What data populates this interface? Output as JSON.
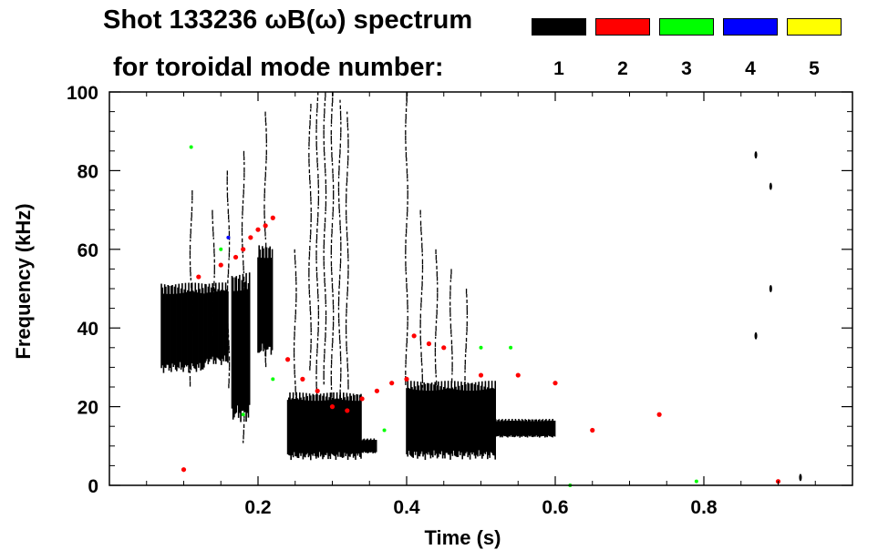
{
  "chart_data": {
    "type": "heatmap",
    "title": "Shot 133236 ωB(ω) spectrum",
    "subtitle": "for toroidal mode number:",
    "xlabel": "Time (s)",
    "ylabel": "Frequency (kHz)",
    "xlim": [
      0.0,
      1.0
    ],
    "ylim": [
      0,
      100
    ],
    "x_ticks": [
      0.2,
      0.4,
      0.6,
      0.8
    ],
    "x_tick_labels": [
      "0.2",
      "0.4",
      "0.6",
      "0.8"
    ],
    "y_ticks": [
      0,
      20,
      40,
      60,
      80,
      100
    ],
    "y_tick_labels": [
      "0",
      "20",
      "40",
      "60",
      "80",
      "100"
    ],
    "legend": [
      {
        "label": "1",
        "color": "#000000"
      },
      {
        "label": "2",
        "color": "#ff0000"
      },
      {
        "label": "3",
        "color": "#00ff00"
      },
      {
        "label": "4",
        "color": "#0000ff"
      },
      {
        "label": "5",
        "color": "#ffff00"
      }
    ],
    "mode1_regions": [
      {
        "t0": 0.07,
        "t1": 0.13,
        "f0": 28,
        "f1": 52
      },
      {
        "t0": 0.13,
        "t1": 0.16,
        "f0": 30,
        "f1": 52
      },
      {
        "t0": 0.165,
        "t1": 0.19,
        "f0": 15,
        "f1": 55
      },
      {
        "t0": 0.2,
        "t1": 0.22,
        "f0": 32,
        "f1": 62
      },
      {
        "t0": 0.24,
        "t1": 0.34,
        "f0": 6,
        "f1": 24
      },
      {
        "t0": 0.34,
        "t1": 0.36,
        "f0": 8,
        "f1": 12
      },
      {
        "t0": 0.4,
        "t1": 0.52,
        "f0": 6,
        "f1": 27
      },
      {
        "t0": 0.52,
        "t1": 0.6,
        "f0": 12,
        "f1": 17
      }
    ],
    "mode1_vertical_streaks": [
      {
        "t": 0.11,
        "f0": 25,
        "f1": 75
      },
      {
        "t": 0.14,
        "f0": 35,
        "f1": 70
      },
      {
        "t": 0.16,
        "f0": 25,
        "f1": 80
      },
      {
        "t": 0.18,
        "f0": 10,
        "f1": 85
      },
      {
        "t": 0.21,
        "f0": 30,
        "f1": 95
      },
      {
        "t": 0.25,
        "f0": 20,
        "f1": 60
      },
      {
        "t": 0.27,
        "f0": 30,
        "f1": 97
      },
      {
        "t": 0.28,
        "f0": 20,
        "f1": 100
      },
      {
        "t": 0.29,
        "f0": 25,
        "f1": 100
      },
      {
        "t": 0.3,
        "f0": 20,
        "f1": 100
      },
      {
        "t": 0.31,
        "f0": 20,
        "f1": 98
      },
      {
        "t": 0.32,
        "f0": 25,
        "f1": 95
      },
      {
        "t": 0.4,
        "f0": 25,
        "f1": 100
      },
      {
        "t": 0.42,
        "f0": 20,
        "f1": 70
      },
      {
        "t": 0.44,
        "f0": 20,
        "f1": 60
      },
      {
        "t": 0.46,
        "f0": 20,
        "f1": 55
      },
      {
        "t": 0.48,
        "f0": 20,
        "f1": 50
      }
    ],
    "mode1_points": [
      {
        "t": 0.87,
        "f": 84
      },
      {
        "t": 0.89,
        "f": 76
      },
      {
        "t": 0.89,
        "f": 50
      },
      {
        "t": 0.87,
        "f": 38
      },
      {
        "t": 0.93,
        "f": 2
      }
    ],
    "mode2_points": [
      {
        "t": 0.12,
        "f": 53
      },
      {
        "t": 0.15,
        "f": 56
      },
      {
        "t": 0.17,
        "f": 58
      },
      {
        "t": 0.18,
        "f": 60
      },
      {
        "t": 0.19,
        "f": 63
      },
      {
        "t": 0.2,
        "f": 65
      },
      {
        "t": 0.21,
        "f": 66
      },
      {
        "t": 0.22,
        "f": 68
      },
      {
        "t": 0.24,
        "f": 32
      },
      {
        "t": 0.26,
        "f": 27
      },
      {
        "t": 0.28,
        "f": 24
      },
      {
        "t": 0.3,
        "f": 20
      },
      {
        "t": 0.32,
        "f": 19
      },
      {
        "t": 0.34,
        "f": 22
      },
      {
        "t": 0.36,
        "f": 24
      },
      {
        "t": 0.38,
        "f": 26
      },
      {
        "t": 0.4,
        "f": 27
      },
      {
        "t": 0.41,
        "f": 38
      },
      {
        "t": 0.43,
        "f": 36
      },
      {
        "t": 0.45,
        "f": 35
      },
      {
        "t": 0.5,
        "f": 28
      },
      {
        "t": 0.55,
        "f": 28
      },
      {
        "t": 0.6,
        "f": 26
      },
      {
        "t": 0.1,
        "f": 4
      },
      {
        "t": 0.65,
        "f": 14
      },
      {
        "t": 0.74,
        "f": 18
      },
      {
        "t": 0.9,
        "f": 1
      }
    ],
    "mode3_points": [
      {
        "t": 0.11,
        "f": 86
      },
      {
        "t": 0.15,
        "f": 60
      },
      {
        "t": 0.18,
        "f": 18
      },
      {
        "t": 0.22,
        "f": 27
      },
      {
        "t": 0.37,
        "f": 14
      },
      {
        "t": 0.5,
        "f": 35
      },
      {
        "t": 0.54,
        "f": 35
      },
      {
        "t": 0.62,
        "f": 0
      },
      {
        "t": 0.79,
        "f": 1
      }
    ],
    "mode4_points": [
      {
        "t": 0.16,
        "f": 63
      }
    ]
  }
}
